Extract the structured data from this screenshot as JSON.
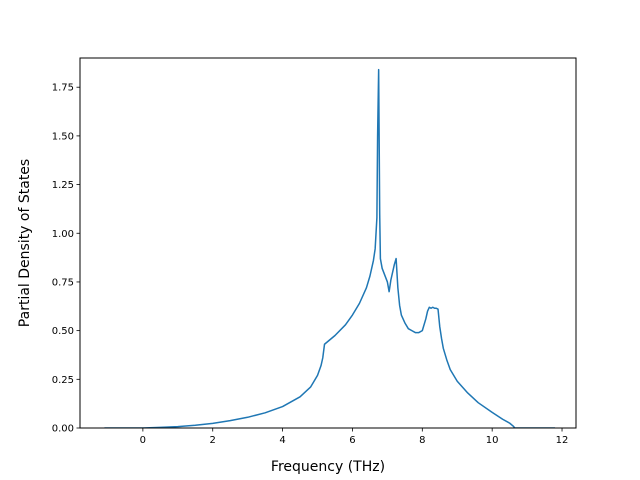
{
  "chart_data": {
    "type": "line",
    "title": "",
    "xlabel": "Frequency (THz)",
    "ylabel": "Partial Density of States",
    "xlim": [
      -1.8,
      12.4
    ],
    "ylim": [
      0,
      1.9
    ],
    "xticks": [
      0,
      2,
      4,
      6,
      8,
      10,
      12
    ],
    "yticks": [
      0.0,
      0.25,
      0.5,
      0.75,
      1.0,
      1.25,
      1.5,
      1.75
    ],
    "xtick_labels": [
      "0",
      "2",
      "4",
      "6",
      "8",
      "10",
      "12"
    ],
    "ytick_labels": [
      "0.00",
      "0.25",
      "0.50",
      "0.75",
      "1.00",
      "1.25",
      "1.50",
      "1.75"
    ],
    "grid": false,
    "series": [
      {
        "color": "#1f77b4",
        "x": [
          -1.1,
          0,
          0.5,
          1.0,
          1.5,
          2.0,
          2.5,
          3.0,
          3.5,
          4.0,
          4.5,
          4.8,
          5.0,
          5.1,
          5.15,
          5.2,
          5.5,
          5.8,
          6.0,
          6.2,
          6.4,
          6.5,
          6.6,
          6.65,
          6.7,
          6.72,
          6.75,
          6.78,
          6.8,
          6.85,
          7.0,
          7.05,
          7.1,
          7.2,
          7.25,
          7.3,
          7.35,
          7.4,
          7.5,
          7.6,
          7.7,
          7.8,
          7.9,
          8.0,
          8.1,
          8.15,
          8.2,
          8.25,
          8.3,
          8.35,
          8.4,
          8.45,
          8.5,
          8.55,
          8.6,
          8.7,
          8.8,
          9.0,
          9.3,
          9.6,
          10.0,
          10.3,
          10.5,
          10.6,
          10.65,
          10.7,
          11.0,
          11.8
        ],
        "y": [
          0.0,
          0.0,
          0.003,
          0.007,
          0.014,
          0.024,
          0.038,
          0.055,
          0.078,
          0.11,
          0.16,
          0.21,
          0.27,
          0.32,
          0.36,
          0.43,
          0.475,
          0.53,
          0.58,
          0.64,
          0.72,
          0.78,
          0.86,
          0.92,
          1.08,
          1.5,
          1.84,
          1.1,
          0.87,
          0.82,
          0.75,
          0.7,
          0.76,
          0.84,
          0.87,
          0.72,
          0.63,
          0.58,
          0.54,
          0.51,
          0.5,
          0.49,
          0.49,
          0.5,
          0.56,
          0.6,
          0.62,
          0.615,
          0.62,
          0.615,
          0.615,
          0.61,
          0.52,
          0.46,
          0.41,
          0.35,
          0.3,
          0.24,
          0.18,
          0.13,
          0.08,
          0.045,
          0.025,
          0.01,
          0.0,
          0.0,
          0.0,
          0.0
        ]
      }
    ]
  }
}
